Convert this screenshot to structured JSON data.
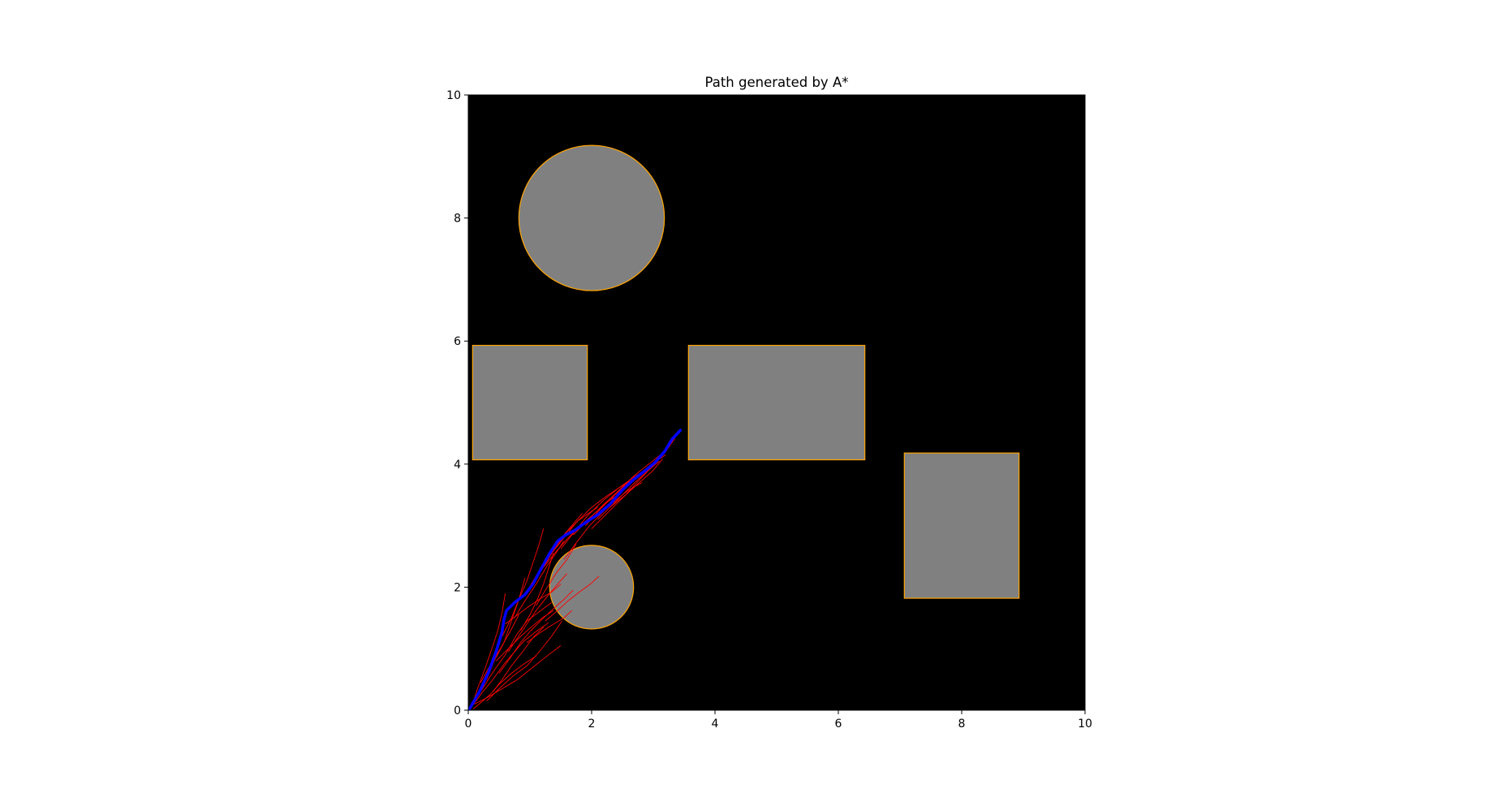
{
  "chart_data": {
    "type": "scatter",
    "title": "Path generated by A*",
    "xlabel": "",
    "ylabel": "",
    "xlim": [
      0,
      10
    ],
    "ylim": [
      0,
      10
    ],
    "x_ticks": [
      "0",
      "2",
      "4",
      "6",
      "8",
      "10"
    ],
    "y_ticks": [
      "0",
      "2",
      "4",
      "6",
      "8",
      "10"
    ],
    "grid": false,
    "background_color": "#000000",
    "obstacle_fill": "#808080",
    "obstacle_edge": "#ffa500",
    "path_color": "#0000ff",
    "explored_color": "#ff0000",
    "obstacles": [
      {
        "shape": "circle",
        "cx": 2.0,
        "cy": 8.0,
        "r": 1.18
      },
      {
        "shape": "circle",
        "cx": 2.0,
        "cy": 2.0,
        "r": 0.68
      },
      {
        "shape": "rect",
        "x0": 0.07,
        "y0": 4.07,
        "x1": 1.93,
        "y1": 5.93
      },
      {
        "shape": "rect",
        "x0": 3.57,
        "y0": 4.07,
        "x1": 6.43,
        "y1": 5.93
      },
      {
        "shape": "rect",
        "x0": 7.07,
        "y0": 1.82,
        "x1": 8.93,
        "y1": 4.18
      }
    ],
    "path": {
      "x": [
        0.02,
        0.18,
        0.33,
        0.45,
        0.55,
        0.58,
        0.62,
        0.75,
        0.92,
        1.05,
        1.18,
        1.32,
        1.45,
        1.58,
        1.72,
        1.9,
        2.1,
        2.3,
        2.5,
        2.68,
        2.85,
        3.02,
        3.18,
        3.3,
        3.44
      ],
      "y": [
        0.02,
        0.3,
        0.62,
        0.95,
        1.28,
        1.48,
        1.62,
        1.75,
        1.88,
        2.05,
        2.3,
        2.55,
        2.75,
        2.85,
        2.92,
        3.05,
        3.18,
        3.35,
        3.58,
        3.75,
        3.88,
        4.02,
        4.2,
        4.4,
        4.55
      ]
    },
    "explored_branches": [
      {
        "x": [
          0.05,
          0.22,
          0.4,
          0.58,
          0.75,
          0.9,
          1.1,
          1.3
        ],
        "y": [
          0.05,
          0.28,
          0.5,
          0.75,
          0.95,
          1.12,
          1.28,
          1.42
        ]
      },
      {
        "x": [
          0.05,
          0.15,
          0.28,
          0.4,
          0.48,
          0.55,
          0.6
        ],
        "y": [
          0.05,
          0.35,
          0.7,
          1.05,
          1.3,
          1.6,
          1.9
        ]
      },
      {
        "x": [
          0.1,
          0.3,
          0.55,
          0.8,
          1.05,
          1.3,
          1.5
        ],
        "y": [
          0.1,
          0.2,
          0.35,
          0.5,
          0.7,
          0.9,
          1.05
        ]
      },
      {
        "x": [
          0.2,
          0.4,
          0.6,
          0.78,
          0.95,
          1.15,
          1.35
        ],
        "y": [
          0.3,
          0.62,
          0.9,
          1.22,
          1.45,
          1.6,
          1.75
        ]
      },
      {
        "x": [
          0.3,
          0.42,
          0.58,
          0.7,
          0.82,
          0.92
        ],
        "y": [
          0.5,
          0.8,
          1.1,
          1.45,
          1.8,
          2.15
        ]
      },
      {
        "x": [
          0.45,
          0.65,
          0.85,
          1.02,
          1.2,
          1.38
        ],
        "y": [
          0.8,
          1.0,
          1.2,
          1.35,
          1.5,
          1.62
        ]
      },
      {
        "x": [
          0.55,
          0.7,
          0.82,
          0.95,
          1.05,
          1.15,
          1.22
        ],
        "y": [
          1.2,
          1.5,
          1.8,
          2.1,
          2.4,
          2.7,
          2.95
        ]
      },
      {
        "x": [
          0.6,
          0.8,
          1.0,
          1.18,
          1.35,
          1.5
        ],
        "y": [
          1.4,
          1.55,
          1.7,
          1.82,
          1.92,
          2.05
        ]
      },
      {
        "x": [
          0.75,
          0.92,
          1.1,
          1.28,
          1.42,
          1.55
        ],
        "y": [
          1.5,
          1.78,
          2.05,
          2.35,
          2.55,
          2.75
        ]
      },
      {
        "x": [
          0.9,
          1.05,
          1.2,
          1.38,
          1.55,
          1.72,
          1.85
        ],
        "y": [
          1.85,
          2.1,
          2.35,
          2.62,
          2.85,
          3.05,
          3.2
        ]
      },
      {
        "x": [
          1.0,
          1.2,
          1.4,
          1.6,
          1.78,
          1.95,
          2.1
        ],
        "y": [
          2.0,
          2.3,
          2.62,
          2.9,
          3.08,
          3.2,
          3.3
        ]
      },
      {
        "x": [
          1.2,
          1.4,
          1.6,
          1.82,
          2.05,
          2.25,
          2.45
        ],
        "y": [
          2.3,
          2.55,
          2.78,
          3.0,
          3.2,
          3.38,
          3.52
        ]
      },
      {
        "x": [
          1.35,
          1.55,
          1.75,
          1.98,
          2.2,
          2.42,
          2.62
        ],
        "y": [
          2.55,
          2.8,
          3.05,
          3.28,
          3.45,
          3.6,
          3.72
        ]
      },
      {
        "x": [
          1.5,
          1.72,
          1.95,
          2.2,
          2.45,
          2.7,
          2.95
        ],
        "y": [
          2.62,
          2.9,
          3.18,
          3.42,
          3.62,
          3.8,
          3.95
        ]
      },
      {
        "x": [
          1.7,
          1.95,
          2.2,
          2.45,
          2.7,
          2.95,
          3.15
        ],
        "y": [
          2.85,
          3.1,
          3.35,
          3.58,
          3.82,
          4.02,
          4.18
        ]
      },
      {
        "x": [
          1.9,
          2.15,
          2.4,
          2.62,
          2.85,
          3.05,
          3.2
        ],
        "y": [
          3.0,
          3.28,
          3.52,
          3.72,
          3.9,
          4.05,
          4.15
        ]
      },
      {
        "x": [
          2.1,
          2.3,
          2.55,
          2.78,
          3.0,
          3.2,
          3.35
        ],
        "y": [
          3.1,
          3.3,
          3.5,
          3.75,
          3.98,
          4.2,
          4.42
        ]
      },
      {
        "x": [
          2.3,
          2.5,
          2.7,
          2.92,
          3.1
        ],
        "y": [
          3.3,
          3.5,
          3.7,
          3.9,
          4.05
        ]
      },
      {
        "x": [
          0.08,
          0.2,
          0.35,
          0.5,
          0.7,
          0.9,
          1.1
        ],
        "y": [
          0.02,
          0.12,
          0.25,
          0.42,
          0.6,
          0.75,
          0.88
        ]
      },
      {
        "x": [
          0.3,
          0.5,
          0.72,
          0.95,
          1.15,
          1.35,
          1.52
        ],
        "y": [
          0.15,
          0.35,
          0.55,
          0.72,
          0.95,
          1.2,
          1.45
        ]
      },
      {
        "x": [
          0.5,
          0.68,
          0.85,
          1.02,
          1.2,
          1.38,
          1.55,
          1.7
        ],
        "y": [
          0.6,
          0.85,
          1.1,
          1.3,
          1.48,
          1.65,
          1.8,
          1.95
        ]
      },
      {
        "x": [
          0.85,
          1.0,
          1.12,
          1.22,
          1.3,
          1.38
        ],
        "y": [
          1.3,
          1.55,
          1.8,
          2.05,
          2.3,
          2.55
        ]
      },
      {
        "x": [
          1.1,
          1.25,
          1.42,
          1.6,
          1.75
        ],
        "y": [
          1.7,
          1.95,
          2.22,
          2.45,
          2.7
        ]
      },
      {
        "x": [
          0.95,
          1.15,
          1.35,
          1.55,
          1.68
        ],
        "y": [
          1.1,
          1.25,
          1.38,
          1.5,
          1.62
        ]
      },
      {
        "x": [
          1.25,
          1.45,
          1.62,
          1.8,
          1.98,
          2.12
        ],
        "y": [
          1.45,
          1.62,
          1.78,
          1.92,
          2.05,
          2.18
        ]
      },
      {
        "x": [
          0.4,
          0.55,
          0.7,
          0.88,
          1.05,
          1.22
        ],
        "y": [
          0.3,
          0.5,
          0.72,
          0.95,
          1.18,
          1.35
        ]
      },
      {
        "x": [
          0.65,
          0.8,
          0.95,
          1.1,
          1.28,
          1.45,
          1.6
        ],
        "y": [
          0.95,
          1.18,
          1.4,
          1.62,
          1.85,
          2.05,
          2.22
        ]
      },
      {
        "x": [
          1.55,
          1.75,
          1.95,
          2.18,
          2.4,
          2.6,
          2.82
        ],
        "y": [
          2.45,
          2.72,
          2.98,
          3.22,
          3.42,
          3.58,
          3.7
        ]
      },
      {
        "x": [
          2.0,
          2.25,
          2.5,
          2.75,
          2.98,
          3.15
        ],
        "y": [
          2.95,
          3.2,
          3.45,
          3.68,
          3.88,
          4.08
        ]
      },
      {
        "x": [
          0.2,
          0.35,
          0.52,
          0.68,
          0.82
        ],
        "y": [
          0.45,
          0.72,
          1.0,
          1.28,
          1.55
        ]
      }
    ]
  }
}
